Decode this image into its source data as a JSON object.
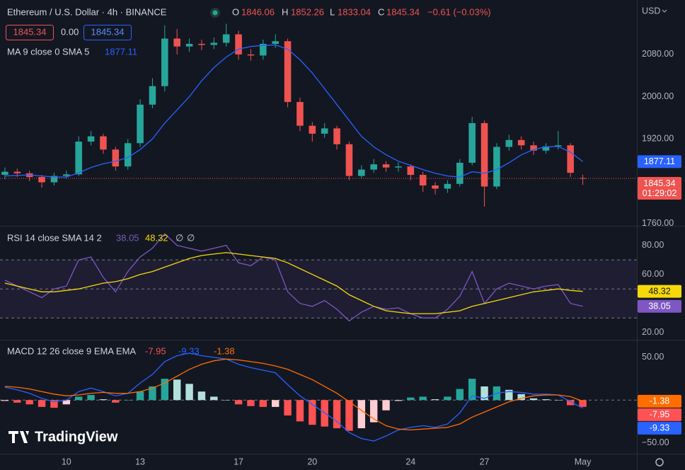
{
  "chart_data": [
    {
      "type": "candlestick",
      "title": "Ethereum / U.S. Dollar · 4h · BINANCE",
      "ohlc_labels": [
        "O",
        "H",
        "L",
        "C"
      ],
      "change_label": "−0.61 (−0.03%)",
      "spread": "0.00",
      "currency": "USD",
      "countdown": "01:29:02",
      "brand": "TradingView",
      "x": [
        7.5,
        8,
        8.5,
        9,
        9.5,
        10,
        10.5,
        11,
        11.5,
        12,
        12.5,
        13,
        13.5,
        14,
        14.5,
        15,
        15.5,
        16,
        16.5,
        17,
        17.5,
        18,
        18.5,
        19,
        19.5,
        20,
        20.5,
        21,
        21.5,
        22,
        22.5,
        23,
        23.5,
        24,
        24.5,
        25,
        25.5,
        26,
        26.5,
        27,
        27.5,
        28,
        28.5,
        29,
        29.5,
        30,
        30.5,
        31
      ],
      "open": [
        1852,
        1858,
        1855,
        1848,
        1838,
        1850,
        1853,
        1915,
        1925,
        1900,
        1868,
        1912,
        1985,
        2020,
        2110,
        2095,
        2100,
        2098,
        2102,
        2118,
        2080,
        2078,
        2100,
        2105,
        1990,
        1945,
        1930,
        1940,
        1910,
        1850,
        1862,
        1872,
        1866,
        1868,
        1852,
        1832,
        1826,
        1835,
        1875,
        1950,
        1830,
        1905,
        1918,
        1908,
        1898,
        1906,
        1908,
        1846.06
      ],
      "high": [
        1866,
        1864,
        1860,
        1852,
        1856,
        1860,
        1925,
        1935,
        1930,
        1905,
        1920,
        1995,
        2035,
        2135,
        2128,
        2110,
        2108,
        2112,
        2138,
        2125,
        2090,
        2108,
        2118,
        2110,
        1998,
        1952,
        1950,
        1945,
        1915,
        1870,
        1882,
        1878,
        1876,
        1872,
        1858,
        1838,
        1842,
        1882,
        1962,
        1955,
        1912,
        1928,
        1925,
        1915,
        1912,
        1935,
        1912,
        1852.26
      ],
      "low": [
        1844,
        1848,
        1840,
        1828,
        1832,
        1845,
        1850,
        1908,
        1892,
        1860,
        1862,
        1905,
        1978,
        2010,
        2080,
        2085,
        2088,
        2090,
        2095,
        2070,
        2068,
        2070,
        2092,
        1980,
        1935,
        1915,
        1922,
        1900,
        1842,
        1845,
        1856,
        1858,
        1858,
        1842,
        1820,
        1815,
        1818,
        1830,
        1870,
        1792,
        1825,
        1898,
        1900,
        1890,
        1892,
        1900,
        1848,
        1833.04
      ],
      "close": [
        1858,
        1855,
        1848,
        1838,
        1850,
        1853,
        1915,
        1925,
        1900,
        1868,
        1912,
        1985,
        2020,
        2110,
        2095,
        2100,
        2098,
        2102,
        2118,
        2080,
        2078,
        2100,
        2105,
        1990,
        1945,
        1930,
        1940,
        1910,
        1850,
        1862,
        1872,
        1866,
        1868,
        1852,
        1832,
        1826,
        1835,
        1875,
        1950,
        1830,
        1905,
        1918,
        1908,
        1898,
        1906,
        1908,
        1856,
        1845.34
      ],
      "up_color": "#26a69a",
      "down_color": "#ef5350",
      "series": [
        {
          "name": "MA 9 close 0 SMA 5",
          "color": "#2962ff",
          "values": [
            1850,
            1851,
            1852,
            1850,
            1848,
            1848,
            1856,
            1866,
            1873,
            1878,
            1885,
            1900,
            1920,
            1950,
            1975,
            2000,
            2030,
            2055,
            2075,
            2090,
            2095,
            2097,
            2098,
            2090,
            2070,
            2045,
            2015,
            1985,
            1955,
            1925,
            1905,
            1890,
            1878,
            1870,
            1862,
            1855,
            1850,
            1848,
            1858,
            1855,
            1862,
            1875,
            1890,
            1900,
            1905,
            1906,
            1895,
            1877.11
          ]
        }
      ],
      "xlim": [
        7.3,
        33.2
      ],
      "ylim": [
        1757,
        2183
      ],
      "yticks": [
        {
          "value": 2080,
          "label": "2080.00"
        },
        {
          "value": 2000,
          "label": "2000.00"
        },
        {
          "value": 1920,
          "label": "1920.00"
        },
        {
          "value": 1760,
          "label": "1760.00"
        }
      ]
    },
    {
      "type": "line",
      "title": "RSI 14 close SMA 14 2",
      "na_labels": [
        "∅",
        "∅"
      ],
      "x": [
        7.5,
        8,
        8.5,
        9,
        9.5,
        10,
        10.5,
        11,
        11.5,
        12,
        12.5,
        13,
        13.5,
        14,
        14.5,
        15,
        15.5,
        16,
        16.5,
        17,
        17.5,
        18,
        18.5,
        19,
        19.5,
        20,
        20.5,
        21,
        21.5,
        22,
        22.5,
        23,
        23.5,
        24,
        24.5,
        25,
        25.5,
        26,
        26.5,
        27,
        27.5,
        28,
        28.5,
        29,
        29.5,
        30,
        30.5,
        31
      ],
      "series": [
        {
          "color": "#7e57c2",
          "values": [
            56,
            52,
            48,
            44,
            50,
            52,
            70,
            72,
            58,
            48,
            62,
            72,
            78,
            88,
            80,
            78,
            76,
            78,
            80,
            68,
            66,
            72,
            70,
            48,
            40,
            38,
            42,
            36,
            28,
            34,
            38,
            36,
            37,
            33,
            30,
            30,
            36,
            45,
            62,
            40,
            50,
            54,
            52,
            50,
            52,
            53,
            40,
            38.05
          ]
        },
        {
          "color": "#f5d90a",
          "values": [
            54,
            52,
            50,
            48,
            48,
            49,
            50,
            52,
            54,
            55,
            57,
            60,
            62,
            65,
            68,
            71,
            73,
            74,
            75,
            74,
            73,
            72,
            71,
            68,
            64,
            60,
            56,
            52,
            46,
            42,
            38,
            35,
            34,
            33,
            33,
            33,
            34,
            35,
            38,
            40,
            42,
            44,
            46,
            48,
            49,
            50,
            49,
            48.32
          ]
        }
      ],
      "bands": [
        70,
        50,
        30
      ],
      "xlim": [
        7.3,
        33.2
      ],
      "ylim": [
        16,
        92
      ],
      "yticks": [
        {
          "value": 80,
          "label": "80.00"
        },
        {
          "value": 60,
          "label": "60.00"
        },
        {
          "value": 20,
          "label": "20.00"
        }
      ]
    },
    {
      "type": "combo",
      "title": "MACD 12 26 close 9 EMA EMA",
      "x": [
        7.5,
        8,
        8.5,
        9,
        9.5,
        10,
        10.5,
        11,
        11.5,
        12,
        12.5,
        13,
        13.5,
        14,
        14.5,
        15,
        15.5,
        16,
        16.5,
        17,
        17.5,
        18,
        18.5,
        19,
        19.5,
        20,
        20.5,
        21,
        21.5,
        22,
        22.5,
        23,
        23.5,
        24,
        24.5,
        25,
        25.5,
        26,
        26.5,
        27,
        27.5,
        28,
        28.5,
        29,
        29.5,
        30,
        30.5,
        31
      ],
      "histogram": {
        "colors": [
          "#26a69a",
          "#b2dfdb",
          "#ffcdd2",
          "#ff5252"
        ],
        "values": [
          -1,
          -3,
          -5,
          -8,
          -9,
          -5,
          4,
          6,
          1,
          -3,
          0,
          10,
          16,
          25,
          24,
          19,
          10,
          4,
          0,
          -5,
          -7,
          -8,
          -8,
          -18,
          -25,
          -29,
          -31,
          -33,
          -36,
          -33,
          -26,
          -12,
          -1,
          3,
          4,
          1,
          4,
          13,
          25,
          16,
          16,
          12,
          7,
          2,
          1,
          0,
          -6,
          -7.95
        ]
      },
      "series": [
        {
          "color": "#2962ff",
          "values": [
            15,
            12,
            8,
            2,
            -2,
            0,
            10,
            14,
            10,
            5,
            8,
            20,
            30,
            45,
            52,
            55,
            52,
            50,
            48,
            42,
            38,
            35,
            32,
            18,
            5,
            -5,
            -15,
            -25,
            -38,
            -45,
            -48,
            -42,
            -35,
            -32,
            -30,
            -32,
            -28,
            -15,
            5,
            2,
            8,
            10,
            9,
            7,
            7,
            6,
            -2,
            -9.33
          ]
        },
        {
          "color": "#ff6d00",
          "values": [
            16,
            15,
            13,
            10,
            7,
            5,
            6,
            8,
            9,
            8,
            8,
            10,
            14,
            20,
            28,
            36,
            42,
            46,
            48,
            47,
            45,
            43,
            40,
            36,
            30,
            24,
            16,
            8,
            -2,
            -12,
            -22,
            -30,
            -34,
            -35,
            -34,
            -33,
            -32,
            -28,
            -20,
            -14,
            -8,
            -2,
            2,
            5,
            6,
            6,
            4,
            -1.38
          ]
        }
      ],
      "xlim": [
        7.3,
        33.2
      ],
      "ylim": [
        -62,
        69
      ],
      "yticks": [
        {
          "value": 50,
          "label": "50.00"
        },
        {
          "value": -50,
          "label": "−50.00"
        }
      ],
      "xticks": [
        10,
        13,
        17,
        20,
        24,
        27,
        {
          "value": 31,
          "label": "May"
        }
      ]
    }
  ]
}
